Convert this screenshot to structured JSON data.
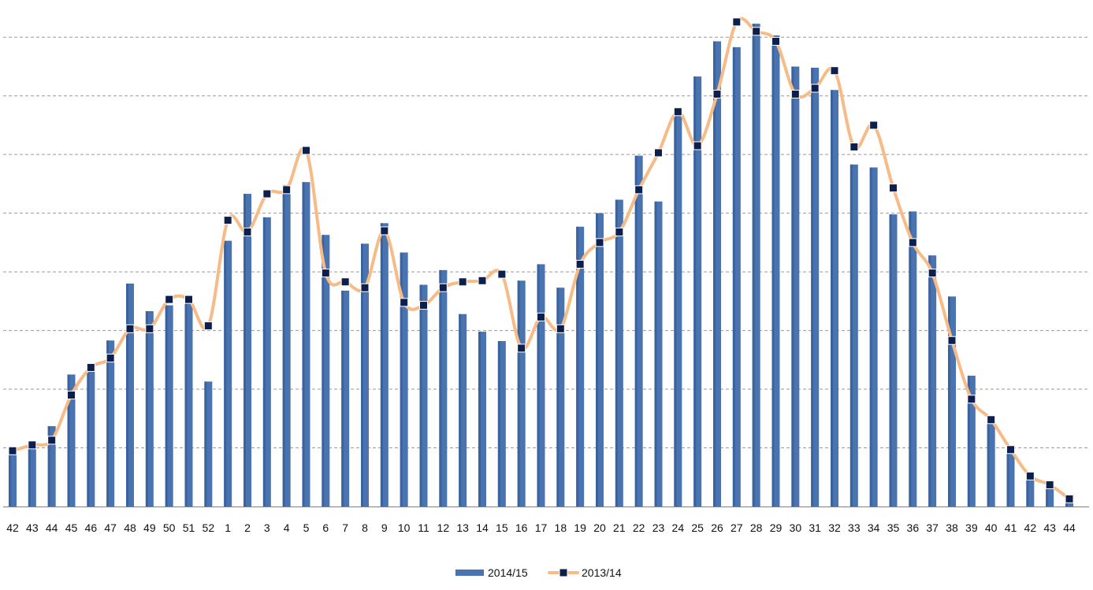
{
  "chart_data": {
    "type": "bar",
    "title": "",
    "xlabel": "",
    "ylabel": "",
    "ylim": [
      0,
      8.5
    ],
    "grid": true,
    "y_tick_labels_shown": false,
    "legend_position": "bottom",
    "colors": {
      "bar": "#4a74b0",
      "line": "#f6bb86",
      "marker": "#0d1f4d",
      "grid": "#9a9a9a",
      "axis": "#808080"
    },
    "categories": [
      "42",
      "43",
      "44",
      "45",
      "46",
      "47",
      "48",
      "49",
      "50",
      "51",
      "52",
      "1",
      "2",
      "3",
      "4",
      "5",
      "6",
      "7",
      "8",
      "9",
      "10",
      "11",
      "12",
      "13",
      "14",
      "15",
      "16",
      "17",
      "18",
      "19",
      "20",
      "21",
      "22",
      "23",
      "24",
      "25",
      "26",
      "27",
      "28",
      "29",
      "30",
      "31",
      "32",
      "33",
      "34",
      "35",
      "36",
      "37",
      "38",
      "39",
      "40",
      "41",
      "42",
      "43",
      "44"
    ],
    "series": [
      {
        "name": "2014/15",
        "kind": "bar",
        "values": [
          0.93,
          1.0,
          1.37,
          2.25,
          2.33,
          2.83,
          3.8,
          3.33,
          3.43,
          3.55,
          2.13,
          4.53,
          5.33,
          4.93,
          5.48,
          5.53,
          4.63,
          3.68,
          4.48,
          4.83,
          4.33,
          3.78,
          4.03,
          3.28,
          2.98,
          2.82,
          3.85,
          4.13,
          3.73,
          4.77,
          5.0,
          5.23,
          5.98,
          5.2,
          6.8,
          7.33,
          7.93,
          7.83,
          8.23,
          8.03,
          7.5,
          7.48,
          7.1,
          5.83,
          5.78,
          4.98,
          5.03,
          4.28,
          3.58,
          2.23,
          1.5,
          0.93,
          0.5,
          0.37,
          0.15
        ]
      },
      {
        "name": "2013/14",
        "kind": "line",
        "values": [
          0.95,
          1.05,
          1.13,
          1.9,
          2.37,
          2.53,
          3.03,
          3.03,
          3.53,
          3.53,
          3.08,
          4.88,
          4.68,
          5.33,
          5.4,
          6.07,
          3.98,
          3.83,
          3.73,
          4.7,
          3.48,
          3.43,
          3.73,
          3.83,
          3.85,
          3.96,
          2.7,
          3.23,
          3.03,
          4.13,
          4.5,
          4.68,
          5.4,
          6.03,
          6.73,
          6.15,
          7.03,
          8.26,
          8.1,
          7.93,
          7.03,
          7.13,
          7.43,
          6.13,
          6.5,
          5.43,
          4.5,
          3.98,
          2.83,
          1.83,
          1.48,
          0.97,
          0.52,
          0.37,
          0.13
        ]
      }
    ]
  }
}
